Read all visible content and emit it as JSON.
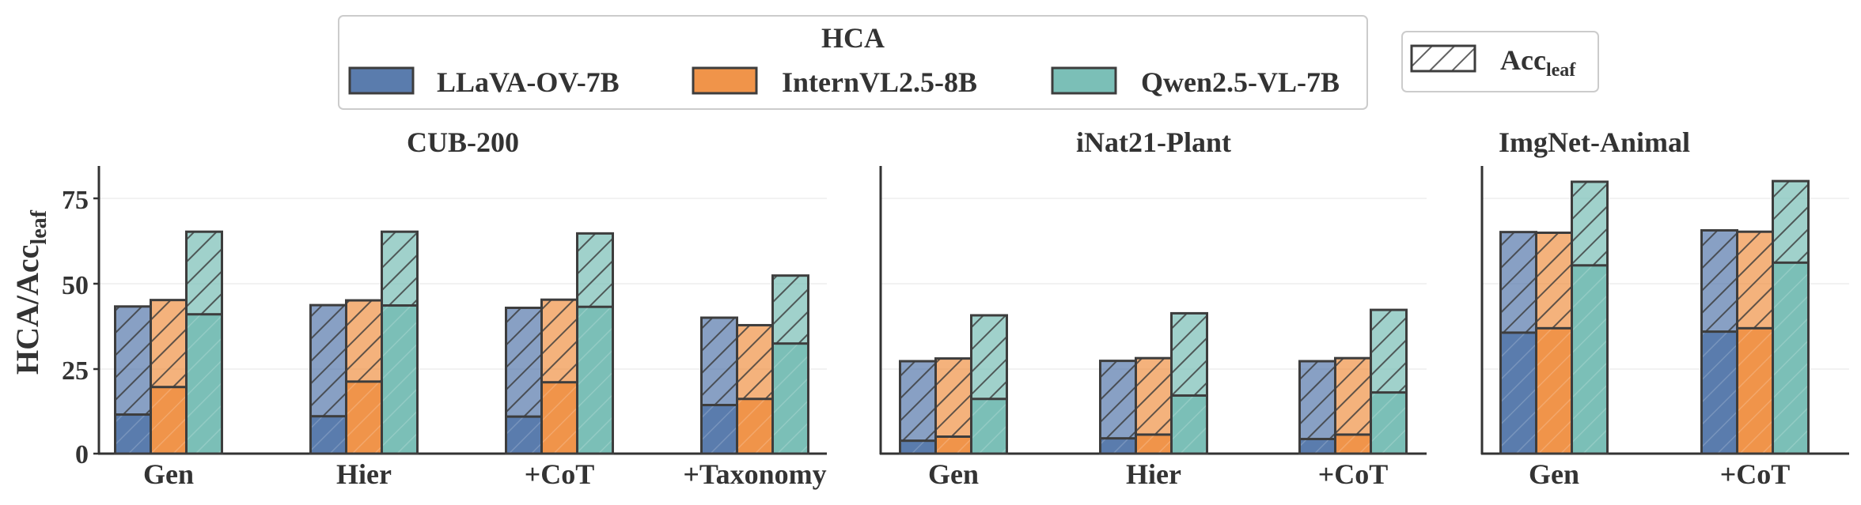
{
  "chart_data": [
    {
      "type": "bar",
      "title": "CUB-200",
      "ylabel": "HCA/Acc",
      "ylabel_sub": "leaf",
      "ylim": [
        0,
        85
      ],
      "yticks": [
        "0",
        "25",
        "50",
        "75"
      ],
      "categories": [
        "Gen",
        "Hier",
        "+CoT",
        "+Taxonomy"
      ],
      "series": [
        {
          "name": "LLaVA-OV-7B",
          "hca": [
            11.5,
            11.0,
            10.9,
            14.3
          ],
          "acc_leaf": [
            43.3,
            43.7,
            42.9,
            40.0
          ]
        },
        {
          "name": "InternVL2.5-8B",
          "hca": [
            19.6,
            21.2,
            21.0,
            16.1
          ],
          "acc_leaf": [
            45.2,
            45.1,
            45.3,
            37.8
          ]
        },
        {
          "name": "Qwen2.5-VL-7B",
          "hca": [
            41.0,
            43.6,
            43.2,
            32.4
          ],
          "acc_leaf": [
            65.3,
            65.3,
            64.8,
            52.4
          ]
        }
      ]
    },
    {
      "type": "bar",
      "title": "iNat21-Plant",
      "ylim": [
        0,
        85
      ],
      "categories": [
        "Gen",
        "Hier",
        "+CoT"
      ],
      "series": [
        {
          "name": "LLaVA-OV-7B",
          "hca": [
            3.8,
            4.5,
            4.3
          ],
          "acc_leaf": [
            27.2,
            27.3,
            27.2
          ]
        },
        {
          "name": "InternVL2.5-8B",
          "hca": [
            5.0,
            5.6,
            5.6
          ],
          "acc_leaf": [
            28.0,
            28.1,
            28.1
          ]
        },
        {
          "name": "Qwen2.5-VL-7B",
          "hca": [
            16.1,
            17.1,
            18.0
          ],
          "acc_leaf": [
            40.7,
            41.3,
            42.3
          ]
        }
      ]
    },
    {
      "type": "bar",
      "title": "ImgNet-Animal",
      "ylim": [
        0,
        85
      ],
      "categories": [
        "Gen",
        "+CoT"
      ],
      "series": [
        {
          "name": "LLaVA-OV-7B",
          "hca": [
            35.6,
            35.9
          ],
          "acc_leaf": [
            65.2,
            65.7
          ]
        },
        {
          "name": "InternVL2.5-8B",
          "hca": [
            36.9,
            36.9
          ],
          "acc_leaf": [
            65.0,
            65.3
          ]
        },
        {
          "name": "Qwen2.5-VL-7B",
          "hca": [
            55.4,
            56.2
          ],
          "acc_leaf": [
            80.0,
            80.2
          ]
        }
      ]
    }
  ],
  "legend": {
    "title": "HCA",
    "entries": [
      "LLaVA-OV-7B",
      "InternVL2.5-8B",
      "Qwen2.5-VL-7B"
    ],
    "acc_label": "Acc",
    "acc_sub": "leaf"
  },
  "colors": {
    "series": [
      "#5a7cad",
      "#f0944a",
      "#7bbfb7"
    ],
    "edge": "#3d3d3d",
    "text": "#333333"
  }
}
